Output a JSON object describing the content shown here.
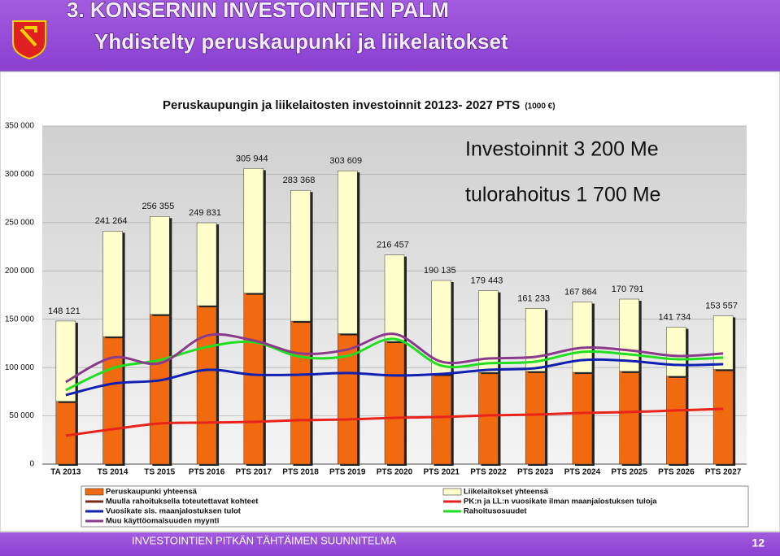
{
  "header": {
    "title": "3. KONSERNIN INVESTOINTIEN PALM",
    "subtitle": "Yhdistelty peruskaupunki ja liikelaitokset"
  },
  "footer": {
    "text": "INVESTOINTIEN PITKÄN TÄHTÄIMEN SUUNNITELMA",
    "page": "12"
  },
  "chart_data": {
    "type": "bar",
    "title": "Peruskaupungin ja liikelaitosten investoinnit 20123- 2027 PTS",
    "unit": "(1000 €)",
    "annotations": [
      "Investoinnit  3 200 Me",
      "tulorahoitus 1 700 Me"
    ],
    "categories": [
      "TA 2013",
      "TS 2014",
      "TS 2015",
      "PTS 2016",
      "PTS 2017",
      "PTS 2018",
      "PTS 2019",
      "PTS 2020",
      "PTS 2021",
      "PTS 2022",
      "PTS 2023",
      "PTS 2024",
      "PTS 2025",
      "PTS 2026",
      "PTS 2027"
    ],
    "totals": [
      148121,
      241264,
      256355,
      249831,
      305944,
      283368,
      303609,
      216457,
      190135,
      179443,
      161233,
      167864,
      170791,
      141734,
      153557
    ],
    "total_labels": [
      "148 121",
      "241 264",
      "256 355",
      "249 831",
      "305 944",
      "283 368",
      "303 609",
      "216 457",
      "190 135",
      "179 443",
      "161 233",
      "167 864",
      "170 791",
      "141 734",
      "153 557"
    ],
    "series": [
      {
        "name": "Peruskaupunki yhteensä",
        "type": "bar",
        "color": "#f26a10",
        "values": [
          65000,
          132000,
          155000,
          164000,
          177000,
          148000,
          135000,
          127000,
          93000,
          95000,
          96000,
          95000,
          96000,
          91000,
          98000
        ]
      },
      {
        "name": "Liikelaitokset yhteensä",
        "type": "bar",
        "color": "#ffffcc",
        "values": [
          83121,
          109264,
          101355,
          85831,
          128944,
          135368,
          168609,
          89457,
          97135,
          84443,
          65233,
          72864,
          74791,
          50734,
          55557
        ]
      },
      {
        "name": "Muulla rahoituksella toteutettavat kohteet",
        "type": "line",
        "color": "#7a2a1a"
      },
      {
        "name": "PK:n ja LL:n vuosikate ilman maanjalostuksen tuloja",
        "type": "line",
        "color": "#e8231c",
        "values": [
          29500,
          36200,
          42100,
          43000,
          43800,
          45500,
          46300,
          48000,
          48800,
          50500,
          51300,
          53000,
          53900,
          55600,
          57200
        ]
      },
      {
        "name": "Vuosikate sis. maanjalostuksen tulot",
        "type": "line",
        "color": "#1020b0",
        "values": [
          71500,
          83300,
          86700,
          97600,
          92600,
          92600,
          94300,
          91800,
          93400,
          97600,
          99300,
          107700,
          106900,
          102700,
          103500
        ]
      },
      {
        "name": "Rahoitusosuudet",
        "type": "line",
        "color": "#22dd22",
        "values": [
          76600,
          99300,
          107700,
          121200,
          126300,
          111100,
          112000,
          129600,
          101900,
          104400,
          106100,
          116200,
          113600,
          108600,
          110300
        ]
      },
      {
        "name": "Muu käyttöomaisuuden myynti",
        "type": "line",
        "color": "#8a3a8a",
        "values": [
          85000,
          110300,
          104400,
          133000,
          128000,
          114500,
          118700,
          134700,
          106100,
          109400,
          111100,
          120400,
          117800,
          112000,
          114500
        ]
      }
    ],
    "ylim": [
      0,
      350000
    ],
    "yticks": [
      0,
      {
        "value": 50000,
        "label": "50 000"
      },
      {
        "value": 100000,
        "label": "100 000"
      },
      {
        "value": 150000,
        "label": "150 000"
      },
      {
        "value": 200000,
        "label": "200 000"
      },
      {
        "value": 250000,
        "label": "250 000"
      },
      {
        "value": 300000,
        "label": "300 000"
      },
      {
        "value": 350000,
        "label": "350 000"
      }
    ],
    "grid": true
  }
}
